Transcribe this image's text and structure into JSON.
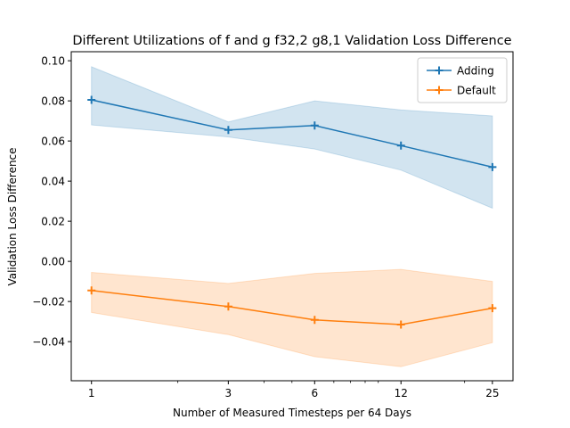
{
  "chart_data": {
    "type": "line",
    "title": "Different Utilizations of f and g f32,2 g8,1 Validation Loss Difference",
    "xlabel": "Number of Measured Timesteps per 64 Days",
    "ylabel": "Validation Loss Difference",
    "x_scale": "log",
    "x": [
      1,
      3,
      6,
      12,
      25
    ],
    "x_tick_labels": [
      "1",
      "3",
      "6",
      "12",
      "25"
    ],
    "xlim": [
      0.85,
      29.5
    ],
    "ylim": [
      -0.0595,
      0.1045
    ],
    "y_ticks": [
      -0.04,
      -0.02,
      0.0,
      0.02,
      0.04,
      0.06,
      0.08,
      0.1
    ],
    "y_tick_labels": [
      "−0.04",
      "−0.02",
      "0.00",
      "0.02",
      "0.04",
      "0.06",
      "0.08",
      "0.10"
    ],
    "grid": false,
    "legend": "upper-right",
    "series": [
      {
        "name": "Adding",
        "color": "#1f77b4",
        "marker": "plus",
        "values": [
          0.0805,
          0.0655,
          0.0677,
          0.0577,
          0.047
        ],
        "band_lower": [
          0.068,
          0.062,
          0.056,
          0.0455,
          0.0265
        ],
        "band_upper": [
          0.097,
          0.0695,
          0.08,
          0.0755,
          0.0725
        ]
      },
      {
        "name": "Default",
        "color": "#ff7f0e",
        "marker": "plus",
        "values": [
          -0.0145,
          -0.0225,
          -0.0292,
          -0.0315,
          -0.0233
        ],
        "band_lower": [
          -0.0255,
          -0.0365,
          -0.0475,
          -0.0525,
          -0.0405
        ],
        "band_upper": [
          -0.0055,
          -0.011,
          -0.006,
          -0.004,
          -0.01
        ]
      }
    ]
  }
}
